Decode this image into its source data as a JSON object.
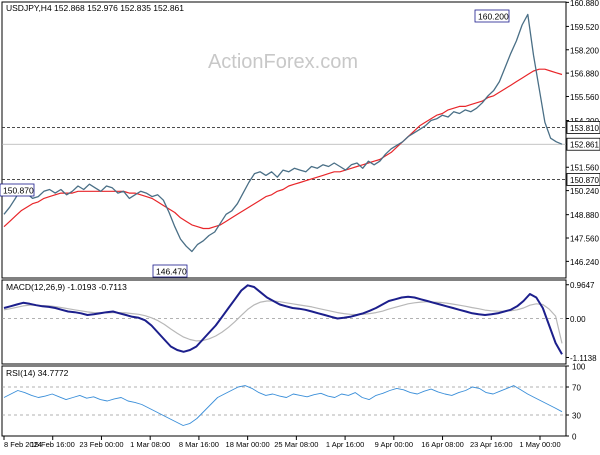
{
  "header": {
    "symbol_line": "USDJPY,H4  152.868 152.976 152.835 152.861",
    "watermark": "ActionForex.com"
  },
  "colors": {
    "price_line": "#4a6f86",
    "ma_line": "#e8262a",
    "macd_line": "#1c1f8c",
    "signal_line": "#b8b8b8",
    "rsi_line": "#3b8fd9",
    "grid_dash": "#999999",
    "frame": "#000000"
  },
  "chart_data": [
    {
      "type": "line",
      "panel": "price",
      "title": "USDJPY,H4  152.868 152.976 152.835 152.861",
      "ylim": [
        145.3,
        160.9
      ],
      "y_ticks": [
        "160.880",
        "159.520",
        "158.200",
        "156.880",
        "155.560",
        "154.200",
        "152.861",
        "151.560",
        "150.240",
        "148.880",
        "147.560",
        "146.240"
      ],
      "x_ticks": [
        "8 Feb 2024",
        "15 Feb 16:00",
        "23 Feb 00:00",
        "1 Mar 08:00",
        "8 Mar 16:00",
        "18 Mar 00:00",
        "25 Mar 08:00",
        "1 Apr 16:00",
        "9 Apr 00:00",
        "16 Apr 08:00",
        "23 Apr 16:00",
        "1 May 00:00"
      ],
      "series": [
        {
          "values": [
            148.9,
            149.3,
            149.8,
            150.4,
            150.1,
            149.8,
            149.9,
            150.2,
            150.3,
            150.1,
            150.3,
            150.0,
            150.2,
            150.5,
            150.3,
            150.6,
            150.4,
            150.2,
            150.5,
            150.4,
            150.1,
            150.2,
            149.8,
            150.0,
            150.2,
            150.1,
            149.9,
            150.0,
            149.7,
            149.0,
            148.2,
            147.5,
            147.1,
            146.8,
            147.2,
            147.4,
            147.7,
            147.9,
            148.4,
            148.9,
            149.1,
            149.5,
            150.1,
            150.7,
            151.2,
            151.3,
            151.1,
            151.3,
            151.0,
            151.4,
            151.3,
            151.5,
            151.4,
            151.3,
            151.6,
            151.5,
            151.7,
            151.6,
            151.8,
            151.6,
            151.4,
            151.7,
            151.8,
            151.5,
            151.9,
            151.7,
            151.9,
            152.3,
            152.6,
            152.8,
            153.0,
            153.3,
            153.5,
            153.7,
            153.9,
            154.2,
            154.3,
            154.5,
            154.4,
            154.7,
            154.6,
            154.8,
            154.7,
            154.9,
            155.2,
            155.6,
            155.9,
            156.4,
            157.2,
            158.0,
            158.7,
            159.6,
            160.2,
            157.9,
            156.0,
            154.1,
            153.2,
            153.0,
            152.861
          ]
        },
        {
          "values": [
            148.2,
            148.5,
            148.8,
            149.1,
            149.3,
            149.5,
            149.6,
            149.8,
            149.9,
            150.0,
            150.1,
            150.1,
            150.1,
            150.2,
            150.2,
            150.2,
            150.2,
            150.2,
            150.2,
            150.2,
            150.2,
            150.2,
            150.1,
            150.1,
            150.0,
            149.9,
            149.8,
            149.6,
            149.4,
            149.2,
            149.0,
            148.7,
            148.5,
            148.3,
            148.2,
            148.1,
            148.1,
            148.2,
            148.3,
            148.5,
            148.7,
            148.9,
            149.1,
            149.3,
            149.5,
            149.7,
            149.9,
            150.0,
            150.2,
            150.3,
            150.5,
            150.6,
            150.7,
            150.8,
            150.9,
            151.0,
            151.1,
            151.2,
            151.3,
            151.3,
            151.4,
            151.5,
            151.6,
            151.7,
            151.8,
            151.9,
            152.0,
            152.2,
            152.4,
            152.7,
            153.0,
            153.3,
            153.6,
            153.9,
            154.1,
            154.3,
            154.5,
            154.6,
            154.8,
            154.9,
            155.0,
            155.0,
            155.1,
            155.2,
            155.3,
            155.5,
            155.6,
            155.8,
            156.0,
            156.2,
            156.4,
            156.6,
            156.8,
            157.0,
            157.1,
            157.1,
            157.0,
            156.9,
            156.8
          ]
        }
      ],
      "annotations": [
        {
          "label": "160.200",
          "value": 160.2
        },
        {
          "label": "146.470",
          "value": 146.47
        },
        {
          "label": "150.870",
          "value": 150.87
        },
        {
          "label": "153.810",
          "value": 153.81
        },
        {
          "label": "150.870",
          "value": 150.87
        }
      ]
    },
    {
      "type": "line",
      "panel": "macd",
      "title": "MACD(12,26,9) -1.0193 -0.7113",
      "ylim": [
        -1.3,
        1.1
      ],
      "y_ticks": [
        "0.9647",
        "0.00",
        "-1.1138"
      ],
      "series": [
        {
          "values": [
            0.3,
            0.35,
            0.4,
            0.45,
            0.42,
            0.38,
            0.35,
            0.33,
            0.3,
            0.25,
            0.2,
            0.18,
            0.15,
            0.1,
            0.12,
            0.15,
            0.18,
            0.2,
            0.15,
            0.1,
            0.05,
            0.02,
            -0.05,
            -0.2,
            -0.4,
            -0.6,
            -0.8,
            -0.9,
            -0.95,
            -0.9,
            -0.8,
            -0.6,
            -0.4,
            -0.2,
            0.05,
            0.3,
            0.55,
            0.8,
            0.95,
            0.9,
            0.75,
            0.6,
            0.5,
            0.4,
            0.35,
            0.3,
            0.28,
            0.25,
            0.2,
            0.15,
            0.1,
            0.05,
            0.0,
            0.02,
            0.05,
            0.1,
            0.15,
            0.22,
            0.3,
            0.4,
            0.5,
            0.55,
            0.6,
            0.62,
            0.6,
            0.55,
            0.5,
            0.45,
            0.4,
            0.35,
            0.3,
            0.25,
            0.2,
            0.15,
            0.12,
            0.1,
            0.12,
            0.15,
            0.2,
            0.25,
            0.35,
            0.5,
            0.7,
            0.6,
            0.3,
            -0.2,
            -0.7,
            -1.0193
          ]
        },
        {
          "values": [
            0.25,
            0.28,
            0.32,
            0.36,
            0.38,
            0.38,
            0.37,
            0.36,
            0.34,
            0.31,
            0.28,
            0.25,
            0.22,
            0.19,
            0.17,
            0.16,
            0.16,
            0.17,
            0.17,
            0.16,
            0.14,
            0.12,
            0.08,
            0.02,
            -0.06,
            -0.17,
            -0.3,
            -0.42,
            -0.53,
            -0.6,
            -0.64,
            -0.63,
            -0.58,
            -0.5,
            -0.39,
            -0.25,
            -0.09,
            0.09,
            0.26,
            0.39,
            0.47,
            0.5,
            0.5,
            0.48,
            0.45,
            0.42,
            0.39,
            0.36,
            0.33,
            0.29,
            0.25,
            0.21,
            0.17,
            0.14,
            0.12,
            0.11,
            0.12,
            0.14,
            0.17,
            0.21,
            0.27,
            0.32,
            0.37,
            0.42,
            0.45,
            0.47,
            0.48,
            0.47,
            0.46,
            0.44,
            0.41,
            0.38,
            0.35,
            0.31,
            0.28,
            0.24,
            0.22,
            0.21,
            0.21,
            0.22,
            0.25,
            0.3,
            0.38,
            0.42,
            0.4,
            0.27,
            0.07,
            -0.7113
          ]
        }
      ]
    },
    {
      "type": "line",
      "panel": "rsi",
      "title": "RSI(14) 34.7772",
      "ylim": [
        0,
        100
      ],
      "y_ticks": [
        "100",
        "70",
        "30",
        "0"
      ],
      "series": [
        {
          "values": [
            55,
            60,
            65,
            62,
            58,
            55,
            57,
            60,
            56,
            52,
            55,
            58,
            54,
            56,
            52,
            50,
            53,
            55,
            50,
            48,
            45,
            40,
            35,
            30,
            25,
            20,
            15,
            18,
            25,
            35,
            45,
            55,
            60,
            65,
            70,
            72,
            68,
            62,
            58,
            60,
            57,
            55,
            60,
            58,
            56,
            59,
            61,
            57,
            55,
            60,
            58,
            62,
            55,
            52,
            58,
            61,
            65,
            68,
            66,
            62,
            60,
            64,
            67,
            63,
            60,
            58,
            62,
            65,
            70,
            68,
            62,
            60,
            64,
            68,
            72,
            66,
            60,
            55,
            50,
            45,
            40,
            34.7772
          ]
        }
      ]
    }
  ]
}
